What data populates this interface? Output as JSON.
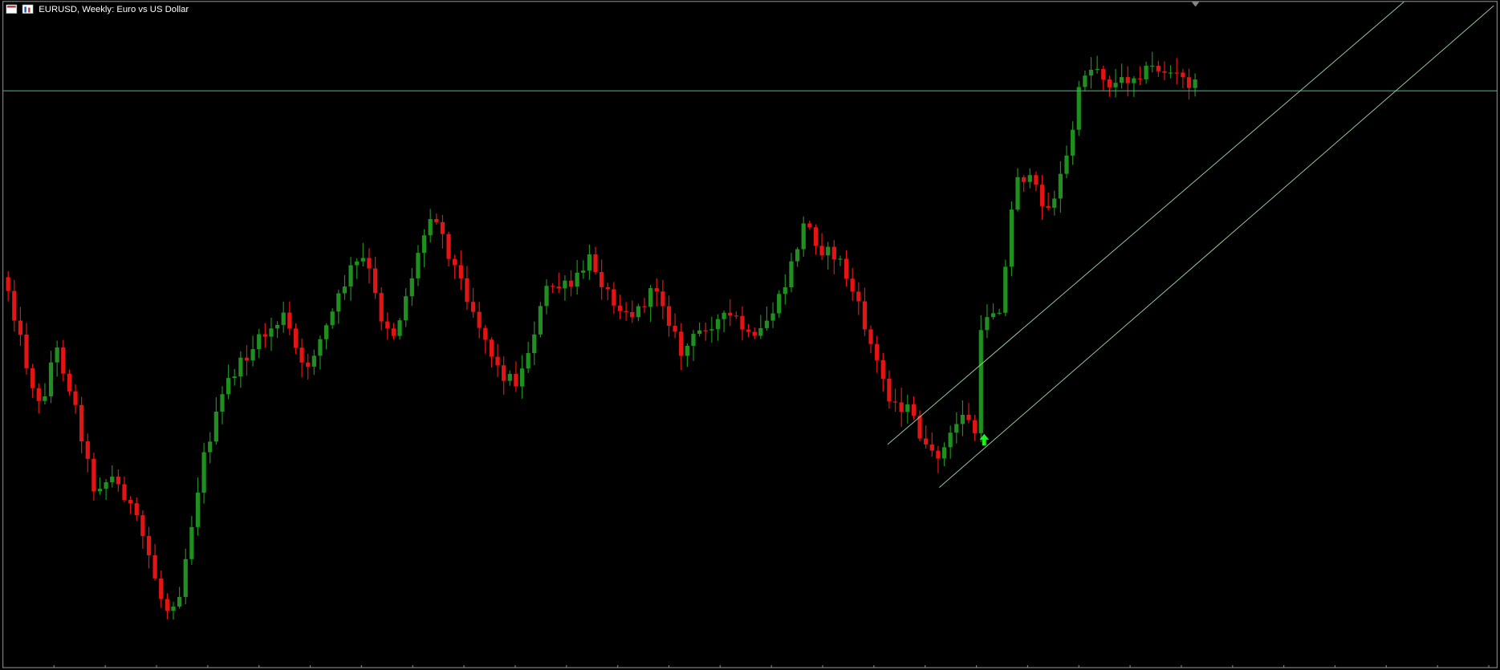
{
  "window": {
    "title": "EURUSD, Weekly:  Euro vs US Dollar"
  }
}
